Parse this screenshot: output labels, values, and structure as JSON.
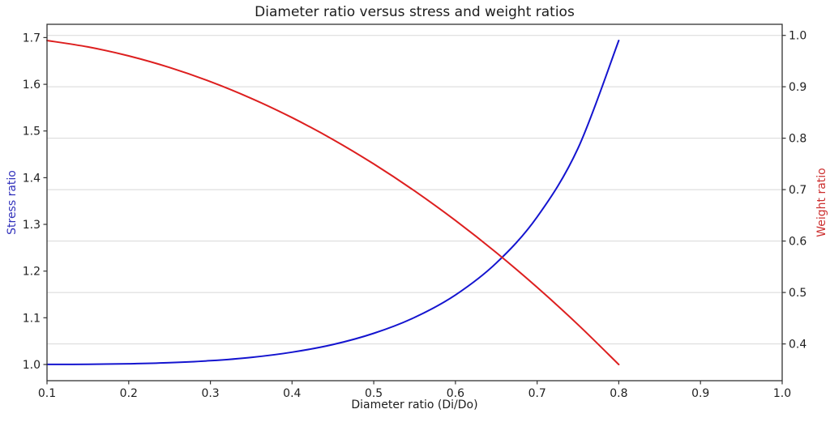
{
  "chart_data": {
    "type": "line",
    "title": "Diameter ratio versus stress and weight ratios",
    "xlabel": "Diameter ratio (Di/Do)",
    "ylabel_left": "Stress ratio",
    "ylabel_right": "Weight ratio",
    "xlim": [
      0.1,
      1.0
    ],
    "ylim_left": [
      0.9653,
      1.7285
    ],
    "ylim_right": [
      0.3285,
      1.0215
    ],
    "x_ticks": [
      0.1,
      0.2,
      0.3,
      0.4,
      0.5,
      0.6,
      0.7,
      0.8,
      0.9,
      1.0
    ],
    "y_ticks_left": [
      1.0,
      1.1,
      1.2,
      1.3,
      1.4,
      1.5,
      1.6,
      1.7
    ],
    "y_ticks_right": [
      0.4,
      0.5,
      0.6,
      0.7,
      0.8,
      0.9,
      1.0
    ],
    "grid": "horizontal-right-axis-ticks",
    "legend": "none",
    "x": [
      0.1,
      0.15,
      0.2,
      0.25,
      0.3,
      0.35,
      0.4,
      0.45,
      0.5,
      0.55,
      0.6,
      0.65,
      0.7,
      0.75,
      0.8
    ],
    "series": [
      {
        "name": "Stress ratio",
        "axis": "left",
        "color": "#1414cf",
        "values": [
          1.0001,
          1.0005,
          1.0016,
          1.0039,
          1.0082,
          1.0152,
          1.0263,
          1.0427,
          1.0667,
          1.1007,
          1.1489,
          1.2173,
          1.316,
          1.4629,
          1.6938
        ]
      },
      {
        "name": "Weight ratio",
        "axis": "right",
        "color": "#dd1f1f",
        "values": [
          0.99,
          0.9775,
          0.96,
          0.9375,
          0.91,
          0.8775,
          0.84,
          0.7975,
          0.75,
          0.6975,
          0.64,
          0.5775,
          0.51,
          0.4375,
          0.36
        ]
      }
    ]
  },
  "colors": {
    "label_left": "#3030bb",
    "label_right": "#cc2f2f",
    "grid": "#d8d8d8",
    "spine": "#333333",
    "tick_text": "#1f1f1f",
    "background": "#ffffff"
  }
}
